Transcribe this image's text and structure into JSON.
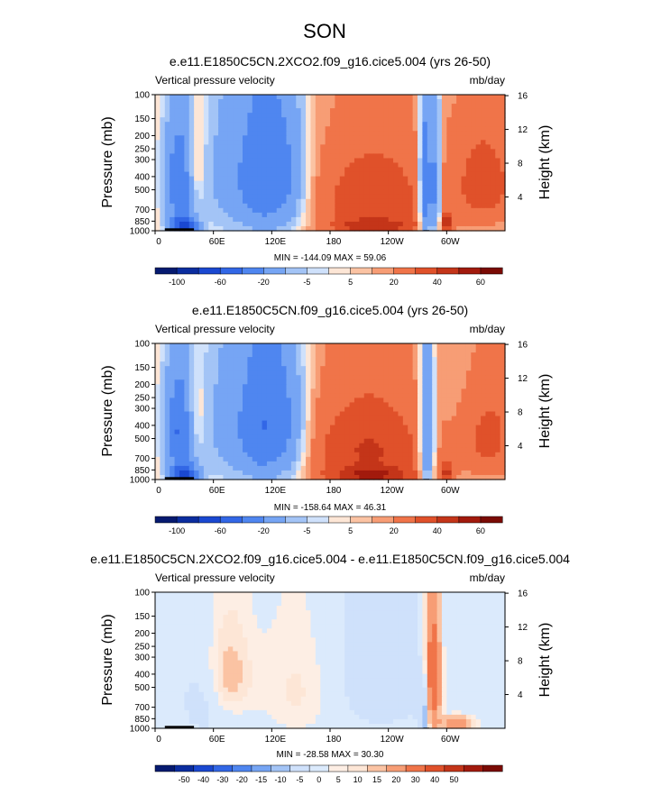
{
  "figure": {
    "season": "SON"
  },
  "colors": {
    "abs_palette": [
      "#061a70",
      "#0b2d9f",
      "#1a48d1",
      "#3267e6",
      "#4f86f0",
      "#76a5f4",
      "#a3c4f6",
      "#cfe1fb",
      "#fde6d6",
      "#fbc3a3",
      "#f79d75",
      "#f07449",
      "#e0512a",
      "#c43519",
      "#a21a0d",
      "#7a0b05"
    ],
    "diff_palette": [
      "#061a70",
      "#0b2d9f",
      "#1a48d1",
      "#3267e6",
      "#4f86f0",
      "#76a5f4",
      "#a3c4f6",
      "#cfe1fb",
      "#dbeafc",
      "#fdeee4",
      "#fde6d6",
      "#fbc3a3",
      "#f79d75",
      "#f07449",
      "#e0512a",
      "#c43519",
      "#a21a0d",
      "#7a0b05"
    ],
    "topography": "#000000"
  },
  "chart_data": [
    {
      "type": "heatmap",
      "title": "e.e11.E1850C5CN.2XCO2.f09_g16.cice5.004 (yrs 26-50)",
      "left_label": "Vertical pressure velocity",
      "units": "mb/day",
      "ylabel": "Pressure (mb)",
      "ylabel_right": "Height (km)",
      "x_ticks": [
        "0",
        "60E",
        "120E",
        "180",
        "120W",
        "60W"
      ],
      "x_tick_values": [
        0,
        60,
        120,
        180,
        240,
        300
      ],
      "xlim": [
        0,
        360
      ],
      "y_ticks": [
        "100",
        "150",
        "200",
        "250",
        "300",
        "400",
        "500",
        "700",
        "850",
        "1000"
      ],
      "y_tick_values": [
        100,
        150,
        200,
        250,
        300,
        400,
        500,
        700,
        850,
        1000
      ],
      "ylim": [
        100,
        1000
      ],
      "right_ticks": [
        "16",
        "12",
        "8",
        "4"
      ],
      "right_tick_values": [
        16,
        12,
        8,
        4
      ],
      "stats": "MIN = -144.09  MAX =  59.06",
      "min": -144.09,
      "max": 59.06,
      "colorbar_labels": [
        "-100",
        "-60",
        "-20",
        "-5",
        "5",
        "20",
        "40",
        "60"
      ],
      "colorbar_label_boundaries": [
        1,
        3,
        5,
        7,
        9,
        11,
        13,
        15
      ],
      "features": [
        {
          "lon": 25,
          "p": 450,
          "lonw": 12,
          "pw": 300,
          "amp": -60
        },
        {
          "lon": 42,
          "p": 350,
          "lonw": 7,
          "pw": 200,
          "amp": 25
        },
        {
          "lon": 30,
          "p": 950,
          "lonw": 10,
          "pw": 120,
          "amp": -80
        },
        {
          "lon": 85,
          "p": 400,
          "lonw": 28,
          "pw": 420,
          "amp": -35
        },
        {
          "lon": 115,
          "p": 420,
          "lonw": 16,
          "pw": 420,
          "amp": -40
        },
        {
          "lon": 140,
          "p": 400,
          "lonw": 12,
          "pw": 380,
          "amp": -30
        },
        {
          "lon": 225,
          "p": 600,
          "lonw": 45,
          "pw": 360,
          "amp": 26
        },
        {
          "lon": 225,
          "p": 930,
          "lonw": 30,
          "pw": 80,
          "amp": 20
        },
        {
          "lon": 278,
          "p": 500,
          "lonw": 4,
          "pw": 400,
          "amp": -70
        },
        {
          "lon": 288,
          "p": 500,
          "lonw": 4,
          "pw": 400,
          "amp": -55
        },
        {
          "lon": 300,
          "p": 880,
          "lonw": 5,
          "pw": 90,
          "amp": 30
        },
        {
          "lon": 340,
          "p": 450,
          "lonw": 25,
          "pw": 300,
          "amp": 22
        }
      ],
      "topography": [
        {
          "lon": 10,
          "width": 30,
          "p": 960
        },
        {
          "lon": 276,
          "width": 6,
          "p": 990
        }
      ]
    },
    {
      "type": "heatmap",
      "title": "e.e11.E1850C5CN.f09_g16.cice5.004 (yrs 26-50)",
      "left_label": "Vertical pressure velocity",
      "units": "mb/day",
      "ylabel": "Pressure (mb)",
      "ylabel_right": "Height (km)",
      "x_ticks": [
        "0",
        "60E",
        "120E",
        "180",
        "120W",
        "60W"
      ],
      "x_tick_values": [
        0,
        60,
        120,
        180,
        240,
        300
      ],
      "xlim": [
        0,
        360
      ],
      "y_ticks": [
        "100",
        "150",
        "200",
        "250",
        "300",
        "400",
        "500",
        "700",
        "850",
        "1000"
      ],
      "y_tick_values": [
        100,
        150,
        200,
        250,
        300,
        400,
        500,
        700,
        850,
        1000
      ],
      "ylim": [
        100,
        1000
      ],
      "right_ticks": [
        "16",
        "12",
        "8",
        "4"
      ],
      "right_tick_values": [
        16,
        12,
        8,
        4
      ],
      "stats": "MIN = -158.64  MAX =  46.31",
      "min": -158.64,
      "max": 46.31,
      "colorbar_labels": [
        "-100",
        "-60",
        "-20",
        "-5",
        "5",
        "20",
        "40",
        "60"
      ],
      "colorbar_label_boundaries": [
        1,
        3,
        5,
        7,
        9,
        11,
        13,
        15
      ],
      "features": [
        {
          "lon": 25,
          "p": 450,
          "lonw": 12,
          "pw": 300,
          "amp": -62
        },
        {
          "lon": 42,
          "p": 350,
          "lonw": 7,
          "pw": 200,
          "amp": 22
        },
        {
          "lon": 30,
          "p": 950,
          "lonw": 10,
          "pw": 120,
          "amp": -85
        },
        {
          "lon": 85,
          "p": 400,
          "lonw": 28,
          "pw": 420,
          "amp": -35
        },
        {
          "lon": 115,
          "p": 420,
          "lonw": 16,
          "pw": 420,
          "amp": -42
        },
        {
          "lon": 140,
          "p": 400,
          "lonw": 12,
          "pw": 380,
          "amp": -30
        },
        {
          "lon": 220,
          "p": 620,
          "lonw": 48,
          "pw": 380,
          "amp": 28
        },
        {
          "lon": 225,
          "p": 930,
          "lonw": 30,
          "pw": 80,
          "amp": 22
        },
        {
          "lon": 280,
          "p": 500,
          "lonw": 5,
          "pw": 400,
          "amp": -60
        },
        {
          "lon": 300,
          "p": 880,
          "lonw": 5,
          "pw": 90,
          "amp": 25
        },
        {
          "lon": 345,
          "p": 500,
          "lonw": 20,
          "pw": 300,
          "amp": 20
        }
      ],
      "topography": [
        {
          "lon": 10,
          "width": 30,
          "p": 960
        },
        {
          "lon": 276,
          "width": 6,
          "p": 990
        }
      ]
    },
    {
      "type": "heatmap",
      "title": "e.e11.E1850C5CN.2XCO2.f09_g16.cice5.004 - e.e11.E1850C5CN.f09_g16.cice5.004",
      "left_label": "Vertical pressure velocity",
      "units": "mb/day",
      "ylabel": "Pressure (mb)",
      "ylabel_right": "Height (km)",
      "x_ticks": [
        "0",
        "60E",
        "120E",
        "180",
        "120W",
        "60W"
      ],
      "x_tick_values": [
        0,
        60,
        120,
        180,
        240,
        300
      ],
      "xlim": [
        0,
        360
      ],
      "y_ticks": [
        "100",
        "150",
        "200",
        "250",
        "300",
        "400",
        "500",
        "700",
        "850",
        "1000"
      ],
      "y_tick_values": [
        100,
        150,
        200,
        250,
        300,
        400,
        500,
        700,
        850,
        1000
      ],
      "ylim": [
        100,
        1000
      ],
      "right_ticks": [
        "16",
        "12",
        "8",
        "4"
      ],
      "right_tick_values": [
        16,
        12,
        8,
        4
      ],
      "stats": "MIN = -28.58  MAX =  30.30",
      "min": -28.58,
      "max": 30.3,
      "colorbar_labels": [
        "-50",
        "-40",
        "-30",
        "-20",
        "-15",
        "-10",
        "-5",
        "0",
        "5",
        "10",
        "15",
        "20",
        "30",
        "40",
        "50"
      ],
      "colorbar_label_boundaries": [
        1,
        2,
        3,
        4,
        5,
        6,
        7,
        8,
        9,
        10,
        11,
        12,
        13,
        14,
        15
      ],
      "features": [
        {
          "lon": 50,
          "p": 600,
          "lonw": 15,
          "pw": 300,
          "amp": -2
        },
        {
          "lon": 75,
          "p": 400,
          "lonw": 18,
          "pw": 250,
          "amp": 4
        },
        {
          "lon": 150,
          "p": 500,
          "lonw": 30,
          "pw": 400,
          "amp": 3
        },
        {
          "lon": 220,
          "p": 400,
          "lonw": 50,
          "pw": 400,
          "amp": -2
        },
        {
          "lon": 285,
          "p": 450,
          "lonw": 6,
          "pw": 350,
          "amp": 18
        },
        {
          "lon": 278,
          "p": 700,
          "lonw": 4,
          "pw": 300,
          "amp": -10
        },
        {
          "lon": 310,
          "p": 920,
          "lonw": 12,
          "pw": 80,
          "amp": 10
        }
      ],
      "topography": [
        {
          "lon": 10,
          "width": 30,
          "p": 960
        },
        {
          "lon": 276,
          "width": 6,
          "p": 990
        }
      ]
    }
  ]
}
